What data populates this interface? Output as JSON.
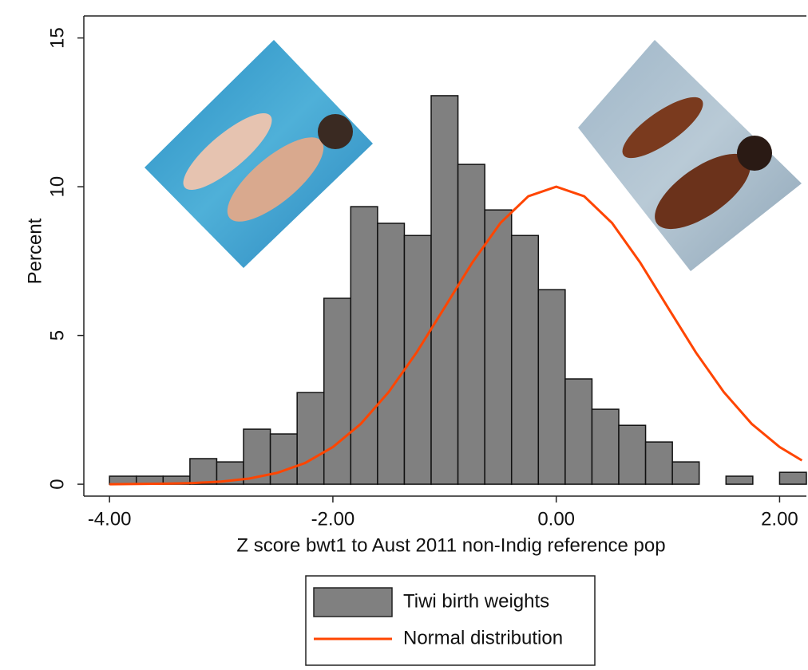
{
  "chart_data": {
    "type": "histogram",
    "x_label": "Z score bwt1 to Aust 2011 non-Indig reference pop",
    "y_label": "Percent",
    "xlim": [
      -4.23,
      2.24
    ],
    "ylim": [
      -0.4,
      15.74
    ],
    "xticks": [
      {
        "value": -4,
        "label": "-4.00"
      },
      {
        "value": -2,
        "label": "-2.00"
      },
      {
        "value": 0,
        "label": "0.00"
      },
      {
        "value": 2,
        "label": "2.00"
      }
    ],
    "yticks": [
      0,
      5,
      10,
      15
    ],
    "bins": [
      -4.0,
      -3.76,
      -3.52,
      -3.28,
      -3.04,
      -2.8,
      -2.56,
      -2.32,
      -2.08,
      -1.84,
      -1.6,
      -1.36,
      -1.12,
      -0.88,
      -0.64,
      -0.4,
      -0.16,
      0.08,
      0.32,
      0.56,
      0.8,
      1.04,
      1.28,
      1.52,
      1.76,
      2.0,
      2.24
    ],
    "series": [
      {
        "name": "Tiwi birth weights",
        "color": "#808080",
        "values": [
          0.27,
          0.27,
          0.27,
          0.86,
          0.75,
          1.85,
          1.69,
          3.08,
          6.25,
          9.33,
          8.77,
          8.36,
          13.06,
          10.75,
          9.22,
          8.36,
          6.54,
          3.54,
          2.52,
          1.98,
          1.42,
          0.75,
          0,
          0.27,
          0,
          0.4
        ]
      },
      {
        "name": "Normal distribution",
        "color": "#ff4500",
        "type": "line",
        "x": [
          -4.0,
          -3.75,
          -3.5,
          -3.25,
          -3.0,
          -2.75,
          -2.5,
          -2.25,
          -2.0,
          -1.75,
          -1.5,
          -1.25,
          -1.0,
          -0.75,
          -0.5,
          -0.25,
          0.0,
          0.25,
          0.5,
          0.75,
          1.0,
          1.25,
          1.5,
          1.75,
          2.0,
          2.2
        ],
        "values": [
          0.0,
          0.01,
          0.02,
          0.04,
          0.09,
          0.19,
          0.38,
          0.71,
          1.25,
          2.03,
          3.1,
          4.43,
          5.94,
          7.46,
          8.78,
          9.68,
          10,
          9.68,
          8.78,
          7.46,
          5.94,
          4.43,
          3.1,
          2.03,
          1.25,
          0.8
        ]
      }
    ],
    "legend": "bottom"
  }
}
